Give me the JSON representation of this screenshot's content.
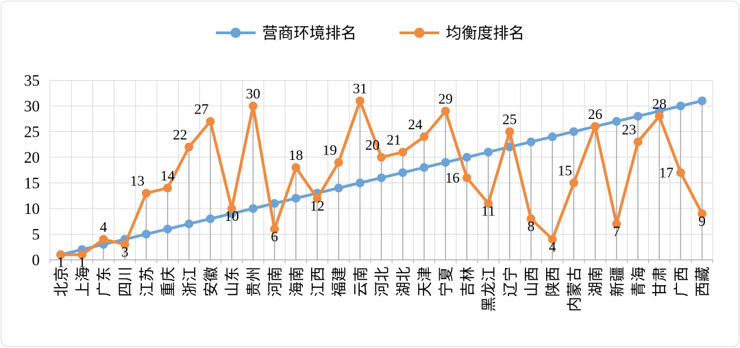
{
  "frame": {
    "background": "#ffffff",
    "border_color": "#d9d9d9"
  },
  "chart_data": {
    "type": "line",
    "title": "",
    "xlabel": "",
    "ylabel": "",
    "ylim": [
      0,
      35
    ],
    "ytick_step": 5,
    "legend_position": "top",
    "grid": {
      "horizontal": true,
      "vertical": true,
      "drop_lines": true
    },
    "colors": {
      "grid": "#d9d9d9",
      "axis": "#a6a6a6",
      "drop_line": "#a6a6a6",
      "label_text": "#000000"
    },
    "categories": [
      "北京",
      "上海",
      "广东",
      "四川",
      "江苏",
      "重庆",
      "浙江",
      "安徽",
      "山东",
      "贵州",
      "河南",
      "海南",
      "江西",
      "福建",
      "云南",
      "河北",
      "湖北",
      "天津",
      "宁夏",
      "吉林",
      "黑龙江",
      "辽宁",
      "山西",
      "陕西",
      "内蒙古",
      "湖南",
      "新疆",
      "青海",
      "甘肃",
      "广西",
      "西藏"
    ],
    "series": [
      {
        "name": "营商环境排名",
        "color": "#6ca2d5",
        "marker": "circle",
        "show_labels": false,
        "values": [
          1,
          2,
          3,
          4,
          5,
          6,
          7,
          8,
          9,
          10,
          11,
          12,
          13,
          14,
          15,
          16,
          17,
          18,
          19,
          20,
          21,
          22,
          23,
          24,
          25,
          26,
          27,
          28,
          29,
          30,
          31
        ]
      },
      {
        "name": "均衡度排名",
        "color": "#ee8b41",
        "marker": "circle",
        "show_labels": true,
        "values": [
          1,
          1,
          4,
          3,
          13,
          14,
          22,
          27,
          10,
          30,
          6,
          18,
          12,
          19,
          31,
          20,
          21,
          24,
          29,
          16,
          11,
          25,
          8,
          4,
          15,
          26,
          7,
          23,
          28,
          17,
          9
        ],
        "label_positions": [
          "below",
          "below",
          "above",
          "below",
          "above-left",
          "above",
          "above-left",
          "above-left",
          "below",
          "above",
          "below",
          "above",
          "below",
          "above-left",
          "above",
          "above-left",
          "above-left",
          "above-left",
          "above",
          "left",
          "below",
          "above",
          "below",
          "below",
          "above-left",
          "above",
          "below",
          "above-left",
          "above",
          "left",
          "below"
        ]
      }
    ],
    "yticks": [
      0,
      5,
      10,
      15,
      20,
      25,
      30,
      35
    ]
  }
}
